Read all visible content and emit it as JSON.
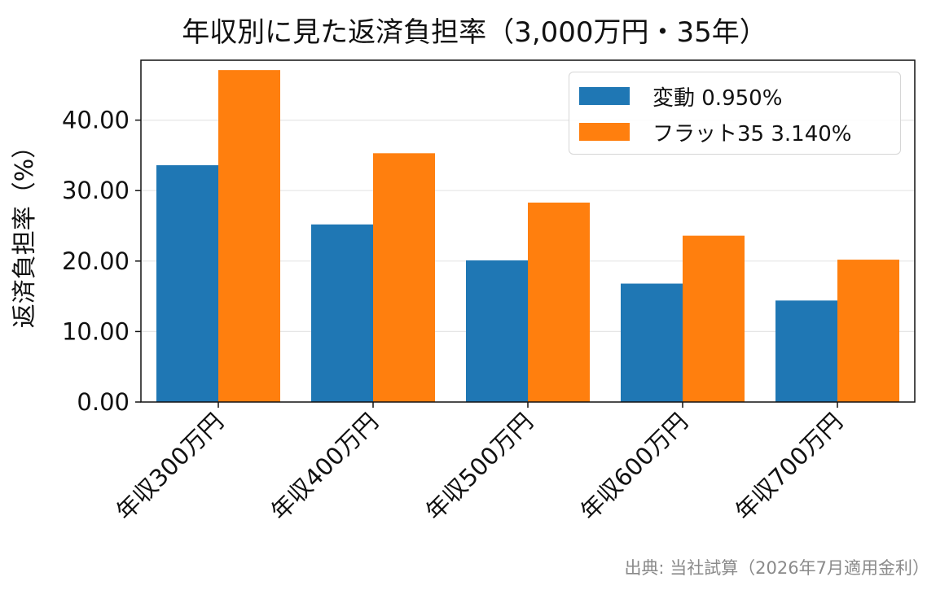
{
  "chart_data": {
    "type": "bar",
    "title": "年収別に見た返済負担率（3,000万円・35年）",
    "xlabel": "",
    "ylabel": "返済負担率（%）",
    "categories": [
      "年収300万円",
      "年収400万円",
      "年収500万円",
      "年収600万円",
      "年収700万円"
    ],
    "series": [
      {
        "name": "変動 0.950%",
        "color": "#1f77b4",
        "values": [
          33.6,
          25.2,
          20.1,
          16.8,
          14.4
        ]
      },
      {
        "name": "フラット35 3.140%",
        "color": "#ff7f0e",
        "values": [
          47.1,
          35.3,
          28.3,
          23.6,
          20.2
        ]
      }
    ],
    "ylim": [
      0,
      48.5
    ],
    "yticks": [
      0,
      10,
      20,
      30,
      40
    ],
    "ytick_labels": [
      "0.00",
      "10.00",
      "20.00",
      "30.00",
      "40.00"
    ],
    "grid": "horizontal",
    "legend_position": "top-right"
  },
  "source_note": "出典: 当社試算（2026年7月適用金利）"
}
